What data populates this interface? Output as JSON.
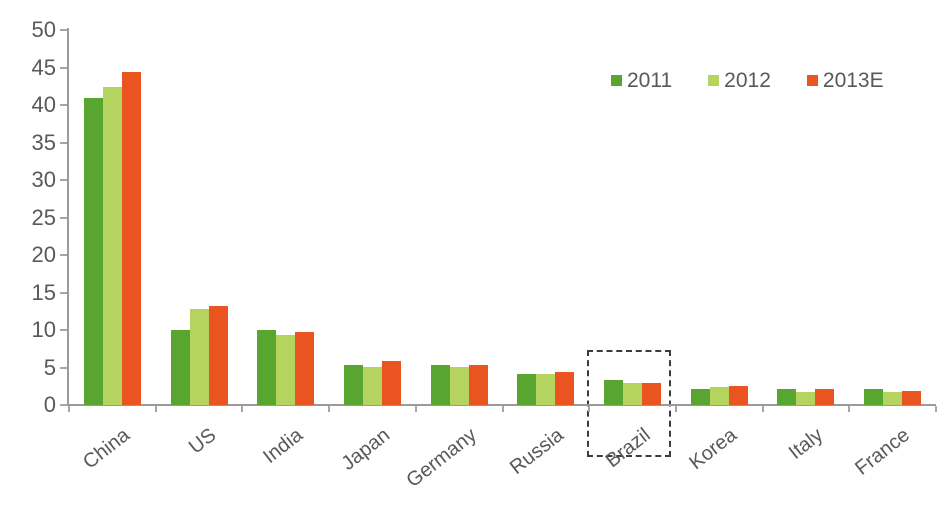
{
  "chart_data": {
    "type": "bar",
    "title": "",
    "xlabel": "",
    "ylabel": "",
    "categories": [
      "China",
      "US",
      "India",
      "Japan",
      "Germany",
      "Russia",
      "Brazil",
      "Korea",
      "Italy",
      "France"
    ],
    "series": [
      {
        "name": "2011",
        "color": "#58a52f",
        "values": [
          41.0,
          10.0,
          10.0,
          5.4,
          5.4,
          4.2,
          3.3,
          2.2,
          2.1,
          2.1
        ]
      },
      {
        "name": "2012",
        "color": "#b5d35f",
        "values": [
          42.4,
          12.8,
          9.4,
          5.1,
          5.1,
          4.1,
          2.9,
          2.4,
          1.8,
          1.8
        ]
      },
      {
        "name": "2013E",
        "color": "#e95420",
        "values": [
          44.4,
          13.2,
          9.8,
          5.9,
          5.4,
          4.4,
          2.9,
          2.6,
          2.1,
          1.9
        ]
      }
    ],
    "ylim": [
      0,
      50
    ],
    "yticks": [
      0,
      5,
      10,
      15,
      20,
      25,
      30,
      35,
      40,
      45,
      50
    ],
    "grid": false,
    "legend_position": "top-right",
    "annotation": {
      "type": "dashed-box",
      "highlight_category": "Brazil"
    },
    "colors": {
      "axis": "#9a9a9a",
      "tick": "#a6a6a6",
      "text": "#595959",
      "highlight_border": "#3c3c3c"
    }
  }
}
